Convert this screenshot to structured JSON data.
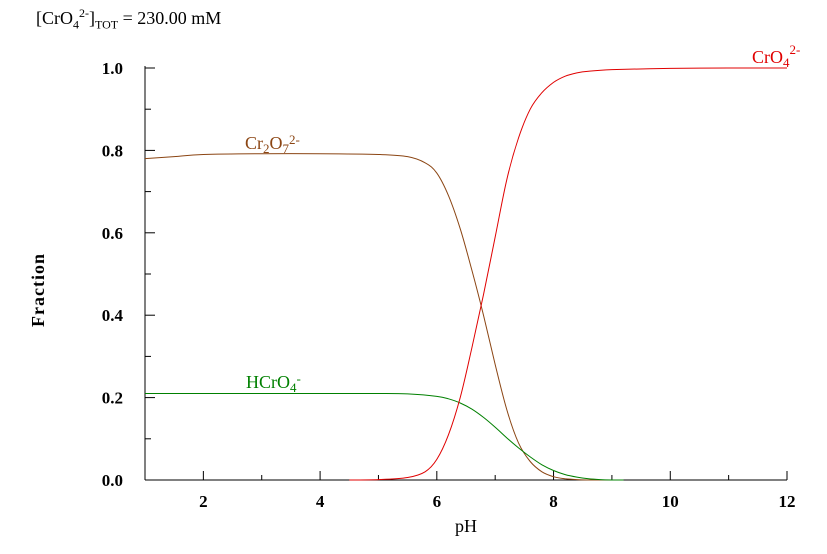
{
  "chart_data": {
    "type": "line",
    "annotation": {
      "prefix": "[CrO",
      "sub": "4",
      "sup": "2-",
      "suffix": "]",
      "sub2": "TOT",
      "value": " =  230.00 mM"
    },
    "xlabel": "pH",
    "ylabel": "Fraction",
    "xlim": [
      1,
      12
    ],
    "ylim": [
      0,
      1
    ],
    "x_ticks": [
      "2",
      "4",
      "6",
      "8",
      "10",
      "12"
    ],
    "y_ticks": [
      "0.0",
      "0.2",
      "0.4",
      "0.6",
      "0.8",
      "1.0"
    ],
    "x_tick_values": [
      2,
      4,
      6,
      8,
      10,
      12
    ],
    "y_tick_values": [
      0.0,
      0.2,
      0.4,
      0.6,
      0.8,
      1.0
    ],
    "grid": false,
    "series": [
      {
        "name": "Cr2O72-",
        "label_parts": {
          "base": "Cr",
          "sub1": "2",
          "mid": "O",
          "sub2": "7",
          "sup": "2-"
        },
        "color": "#8B4513",
        "x": [
          1.0,
          1.5,
          2.0,
          3.0,
          4.0,
          5.0,
          5.5,
          5.8,
          6.0,
          6.2,
          6.4,
          6.6,
          6.8,
          7.0,
          7.2,
          7.4,
          7.6,
          7.8,
          8.0,
          8.2,
          8.4,
          8.6,
          8.8,
          9.0
        ],
        "y": [
          0.78,
          0.785,
          0.79,
          0.792,
          0.792,
          0.79,
          0.785,
          0.77,
          0.745,
          0.69,
          0.61,
          0.51,
          0.4,
          0.28,
          0.17,
          0.09,
          0.045,
          0.02,
          0.008,
          0.003,
          0.001,
          0.0,
          0.0,
          0.0
        ]
      },
      {
        "name": "HCrO4-",
        "label_parts": {
          "base": "HCrO",
          "sub1": "4",
          "sup": "-"
        },
        "color": "#008000",
        "x": [
          1.0,
          2.0,
          3.0,
          4.0,
          5.0,
          5.5,
          6.0,
          6.2,
          6.4,
          6.6,
          6.8,
          7.0,
          7.2,
          7.4,
          7.6,
          7.8,
          8.0,
          8.2,
          8.4,
          8.6,
          8.8,
          9.0,
          9.2
        ],
        "y": [
          0.21,
          0.21,
          0.21,
          0.21,
          0.21,
          0.209,
          0.203,
          0.197,
          0.187,
          0.172,
          0.152,
          0.128,
          0.102,
          0.078,
          0.056,
          0.037,
          0.023,
          0.013,
          0.007,
          0.003,
          0.001,
          0.0,
          0.0
        ]
      },
      {
        "name": "CrO42-",
        "label_parts": {
          "base": "CrO",
          "sub1": "4",
          "sup": "2-"
        },
        "color": "#E00000",
        "x": [
          4.5,
          5.0,
          5.5,
          5.8,
          6.0,
          6.2,
          6.4,
          6.6,
          6.8,
          7.0,
          7.2,
          7.4,
          7.6,
          7.8,
          8.0,
          8.2,
          8.4,
          8.6,
          9.0,
          10.0,
          11.0,
          12.0
        ],
        "y": [
          0.0,
          0.001,
          0.006,
          0.02,
          0.05,
          0.11,
          0.2,
          0.32,
          0.45,
          0.59,
          0.73,
          0.83,
          0.9,
          0.94,
          0.965,
          0.98,
          0.988,
          0.992,
          0.996,
          0.999,
          1.0,
          1.0
        ]
      }
    ]
  }
}
